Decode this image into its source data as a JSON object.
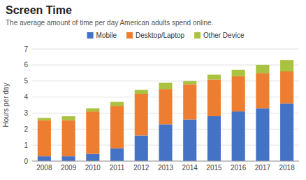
{
  "chart_data": {
    "type": "bar",
    "stacked": true,
    "title": "Screen Time",
    "subtitle": "The average amount of time per day American adults spend online.",
    "ylabel": "Hours per day",
    "categories": [
      "2008",
      "2009",
      "2010",
      "2011",
      "2012",
      "2013",
      "2014",
      "2015",
      "2016",
      "2017",
      "2018"
    ],
    "series": [
      {
        "name": "Mobile",
        "color": "#4472c4",
        "values": [
          0.3,
          0.3,
          0.45,
          0.8,
          1.6,
          2.3,
          2.6,
          2.8,
          3.1,
          3.3,
          3.6
        ]
      },
      {
        "name": "Desktop/Laptop",
        "color": "#ed7d31",
        "values": [
          2.25,
          2.25,
          2.65,
          2.65,
          2.6,
          2.2,
          2.2,
          2.3,
          2.2,
          2.2,
          2.0
        ]
      },
      {
        "name": "Other Device",
        "color": "#a9c23f",
        "values": [
          0.15,
          0.25,
          0.2,
          0.25,
          0.25,
          0.4,
          0.2,
          0.3,
          0.4,
          0.5,
          0.7
        ]
      }
    ],
    "ylim": [
      0,
      7
    ],
    "yticks": [
      0,
      1,
      2,
      3,
      4,
      5,
      6,
      7
    ],
    "grid": true,
    "legend": "top"
  }
}
